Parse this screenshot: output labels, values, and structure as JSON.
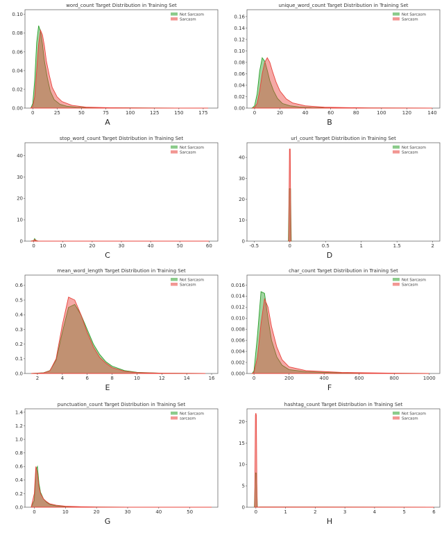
{
  "colors": {
    "not_sarcasm": "#2ca02c",
    "sarcasm": "#e8413a",
    "frame_bg": "#ffffff",
    "axis": "#555555"
  },
  "chart_data": [
    {
      "panel": "A",
      "type": "area",
      "title": "word_count Target Distribution in Training Set",
      "xlim": [
        -8,
        190
      ],
      "ylim": [
        0,
        0.105
      ],
      "xticks": [
        0,
        25,
        50,
        75,
        100,
        125,
        150,
        175
      ],
      "yticks": [
        0.0,
        0.02,
        0.04,
        0.06,
        0.08,
        0.1
      ],
      "ytick_labels": [
        "0.00",
        "0.02",
        "0.04",
        "0.06",
        "0.08",
        "0.10"
      ],
      "legend": [
        "Not Sarcasm",
        "Sarcasm"
      ],
      "legend_position": "top-right",
      "series": [
        {
          "name": "Not Sarcasm",
          "x": [
            -2,
            0,
            2,
            4,
            6,
            8,
            10,
            12,
            15,
            18,
            22,
            28,
            35,
            45,
            60,
            80,
            120,
            180
          ],
          "y": [
            0,
            0.005,
            0.03,
            0.07,
            0.088,
            0.082,
            0.068,
            0.05,
            0.032,
            0.018,
            0.009,
            0.004,
            0.002,
            0.001,
            0.0005,
            0.0003,
            0.0001,
            0
          ]
        },
        {
          "name": "Sarcasm",
          "x": [
            -2,
            0,
            2,
            4,
            6,
            8,
            10,
            12,
            14,
            17,
            20,
            25,
            30,
            40,
            55,
            80,
            120,
            180
          ],
          "y": [
            0,
            0.002,
            0.012,
            0.04,
            0.068,
            0.083,
            0.078,
            0.066,
            0.05,
            0.035,
            0.022,
            0.012,
            0.007,
            0.003,
            0.001,
            0.0004,
            0.0001,
            0
          ]
        }
      ]
    },
    {
      "panel": "B",
      "type": "area",
      "title": "unique_word_count Target Distribution in Training Set",
      "xlim": [
        -6,
        146
      ],
      "ylim": [
        0,
        0.172
      ],
      "xticks": [
        0,
        20,
        40,
        60,
        80,
        100,
        120,
        140
      ],
      "yticks": [
        0.0,
        0.02,
        0.04,
        0.06,
        0.08,
        0.1,
        0.12,
        0.14,
        0.16
      ],
      "ytick_labels": [
        "0.00",
        "0.02",
        "0.04",
        "0.06",
        "0.08",
        "0.10",
        "0.12",
        "0.14",
        "0.16"
      ],
      "legend": [
        "Not Sarcasm",
        "Sarcasm"
      ],
      "legend_position": "top-right",
      "series": [
        {
          "name": "Not Sarcasm",
          "x": [
            -2,
            0,
            2,
            4,
            6,
            8,
            10,
            12,
            15,
            18,
            22,
            28,
            35,
            45,
            60,
            90,
            140
          ],
          "y": [
            0,
            0.004,
            0.025,
            0.065,
            0.088,
            0.082,
            0.066,
            0.048,
            0.03,
            0.017,
            0.008,
            0.004,
            0.002,
            0.001,
            0.0005,
            0.0002,
            0
          ]
        },
        {
          "name": "Sarcasm",
          "x": [
            -2,
            0,
            2,
            4,
            6,
            8,
            10,
            12,
            14,
            17,
            20,
            25,
            30,
            40,
            55,
            90,
            140
          ],
          "y": [
            0,
            0.001,
            0.008,
            0.03,
            0.06,
            0.08,
            0.088,
            0.08,
            0.065,
            0.045,
            0.03,
            0.016,
            0.009,
            0.004,
            0.0015,
            0.0003,
            0
          ]
        }
      ]
    },
    {
      "panel": "C",
      "type": "area",
      "title": "stop_word_count Target Distribution in Training Set",
      "xlim": [
        -3,
        63
      ],
      "ylim": [
        0,
        46
      ],
      "xticks": [
        0,
        10,
        20,
        30,
        40,
        50,
        60
      ],
      "yticks": [
        0,
        10,
        20,
        30,
        40
      ],
      "ytick_labels": [
        "0",
        "10",
        "20",
        "30",
        "40"
      ],
      "legend": [
        "Not Sarcasm",
        "Sarcasm"
      ],
      "legend_position": "top-right",
      "series": [
        {
          "name": "Not Sarcasm",
          "x": [
            -1,
            0,
            0.3,
            0.6,
            1,
            1.5,
            3,
            60
          ],
          "y": [
            0,
            0.3,
            1.2,
            0.6,
            0.2,
            0.05,
            0,
            0
          ]
        },
        {
          "name": "Sarcasm",
          "x": [
            -1,
            0,
            0.3,
            0.6,
            1,
            1.5,
            3,
            60
          ],
          "y": [
            0,
            0.2,
            0.8,
            0.4,
            0.15,
            0.05,
            0,
            0
          ]
        }
      ]
    },
    {
      "panel": "D",
      "type": "area",
      "title": "url_count Target Distribution in Training Set",
      "xlim": [
        -0.6,
        2.1
      ],
      "ylim": [
        0,
        47
      ],
      "xticks": [
        -0.5,
        0.0,
        0.5,
        1.0,
        1.5,
        2.0
      ],
      "yticks": [
        0,
        10,
        20,
        30,
        40
      ],
      "ytick_labels": [
        "0",
        "10",
        "20",
        "30",
        "40"
      ],
      "legend": [
        "Not Sarcasm",
        "Sarcasm"
      ],
      "legend_position": "top-right",
      "series": [
        {
          "name": "Not Sarcasm",
          "x": [
            -0.02,
            -0.01,
            0,
            0.01,
            0.02
          ],
          "y": [
            0,
            25,
            25,
            25,
            0
          ]
        },
        {
          "name": "Sarcasm",
          "x": [
            -0.015,
            -0.005,
            0,
            0.005,
            0.015
          ],
          "y": [
            0,
            44,
            44,
            44,
            0
          ]
        }
      ]
    },
    {
      "panel": "E",
      "type": "area",
      "title": "mean_word_length Target Distribution in Training Set",
      "xlim": [
        1,
        16.5
      ],
      "ylim": [
        0,
        0.67
      ],
      "xticks": [
        2,
        4,
        6,
        8,
        10,
        12,
        14,
        16
      ],
      "yticks": [
        0.0,
        0.1,
        0.2,
        0.3,
        0.4,
        0.5,
        0.6
      ],
      "ytick_labels": [
        "0.0",
        "0.1",
        "0.2",
        "0.3",
        "0.4",
        "0.5",
        "0.6"
      ],
      "legend": [
        "Not Sarcasm",
        "Sarcasm"
      ],
      "legend_position": "top-right",
      "series": [
        {
          "name": "Not Sarcasm",
          "x": [
            1.5,
            2.5,
            3,
            3.5,
            4,
            4.5,
            5,
            5.5,
            6,
            6.5,
            7,
            7.5,
            8,
            9,
            10,
            12,
            15.5
          ],
          "y": [
            0,
            0.005,
            0.02,
            0.09,
            0.28,
            0.45,
            0.47,
            0.4,
            0.3,
            0.2,
            0.13,
            0.08,
            0.05,
            0.02,
            0.008,
            0.002,
            0
          ]
        },
        {
          "name": "Sarcasm",
          "x": [
            1.5,
            2.5,
            3,
            3.5,
            4,
            4.5,
            5,
            5.5,
            6,
            6.5,
            7,
            7.5,
            8,
            9,
            10,
            12,
            15.5
          ],
          "y": [
            0,
            0.004,
            0.018,
            0.1,
            0.33,
            0.52,
            0.5,
            0.4,
            0.28,
            0.18,
            0.11,
            0.07,
            0.04,
            0.015,
            0.006,
            0.002,
            0
          ]
        }
      ]
    },
    {
      "panel": "F",
      "type": "area",
      "title": "char_count Target Distribution in Training Set",
      "xlim": [
        -40,
        1060
      ],
      "ylim": [
        0,
        0.0178
      ],
      "xticks": [
        0,
        200,
        400,
        600,
        800,
        1000
      ],
      "yticks": [
        0.0,
        0.002,
        0.004,
        0.006,
        0.008,
        0.01,
        0.012,
        0.014,
        0.016
      ],
      "ytick_labels": [
        "0.000",
        "0.002",
        "0.004",
        "0.006",
        "0.008",
        "0.010",
        "0.012",
        "0.014",
        "0.016"
      ],
      "legend": [
        "Not Sarcasm",
        "Sarcasm"
      ],
      "legend_position": "top-right",
      "series": [
        {
          "name": "Not Sarcasm",
          "x": [
            -10,
            0,
            20,
            40,
            60,
            80,
            100,
            130,
            160,
            200,
            300,
            500,
            800,
            1000
          ],
          "y": [
            0,
            0.0005,
            0.007,
            0.0148,
            0.0145,
            0.01,
            0.006,
            0.003,
            0.0015,
            0.0007,
            0.0003,
            0.0001,
            3e-05,
            0
          ]
        },
        {
          "name": "Sarcasm",
          "x": [
            -10,
            0,
            20,
            40,
            60,
            80,
            100,
            130,
            160,
            200,
            300,
            500,
            800,
            1000
          ],
          "y": [
            0,
            0.0002,
            0.003,
            0.009,
            0.0135,
            0.012,
            0.0085,
            0.0048,
            0.0025,
            0.0012,
            0.0005,
            0.0002,
            5e-05,
            0
          ]
        }
      ]
    },
    {
      "panel": "G",
      "type": "area",
      "title": "punctuation_count Target Distribution in Training Set",
      "xlim": [
        -3,
        59
      ],
      "ylim": [
        0,
        1.45
      ],
      "xticks": [
        0,
        10,
        20,
        30,
        40,
        50
      ],
      "yticks": [
        0.0,
        0.2,
        0.4,
        0.6,
        0.8,
        1.0,
        1.2,
        1.4
      ],
      "ytick_labels": [
        "0.0",
        "0.2",
        "0.4",
        "0.6",
        "0.8",
        "1.0",
        "1.2",
        "1.4"
      ],
      "legend": [
        "Not Sarcasm",
        "sarcasm"
      ],
      "legend_position": "top-right",
      "series": [
        {
          "name": "Not Sarcasm",
          "x": [
            -1,
            0,
            0.5,
            1,
            1.5,
            2,
            3,
            4,
            5,
            7,
            10,
            15,
            20,
            30,
            57
          ],
          "y": [
            0,
            0.1,
            0.55,
            0.6,
            0.35,
            0.22,
            0.12,
            0.07,
            0.04,
            0.02,
            0.01,
            0.005,
            0.002,
            0.001,
            0
          ]
        },
        {
          "name": "sarcasm",
          "x": [
            -1,
            0,
            0.5,
            1,
            1.5,
            2,
            3,
            4,
            5,
            7,
            10,
            15,
            20,
            30,
            57
          ],
          "y": [
            0,
            0.2,
            0.6,
            0.5,
            0.3,
            0.2,
            0.12,
            0.08,
            0.05,
            0.03,
            0.015,
            0.007,
            0.003,
            0.001,
            0
          ]
        }
      ]
    },
    {
      "panel": "H",
      "type": "area",
      "title": "hashtag_count Target Distribution in Training Set",
      "xlim": [
        -0.3,
        6.2
      ],
      "ylim": [
        0,
        23
      ],
      "xticks": [
        0,
        1,
        2,
        3,
        4,
        5,
        6
      ],
      "yticks": [
        0,
        5,
        10,
        15,
        20
      ],
      "ytick_labels": [
        "0",
        "5",
        "10",
        "15",
        "20"
      ],
      "legend": [
        "Not Sarcasm",
        "Sarcasm"
      ],
      "legend_position": "top-right",
      "series": [
        {
          "name": "Not Sarcasm",
          "x": [
            -0.05,
            -0.02,
            0,
            0.02,
            0.05,
            0.15,
            6
          ],
          "y": [
            0,
            7.9,
            8,
            7.9,
            0,
            0.05,
            0
          ]
        },
        {
          "name": "Sarcasm",
          "x": [
            -0.04,
            -0.015,
            0,
            0.015,
            0.04,
            0.15,
            6
          ],
          "y": [
            0,
            21.5,
            22,
            21.5,
            0,
            0.05,
            0
          ]
        }
      ]
    }
  ]
}
